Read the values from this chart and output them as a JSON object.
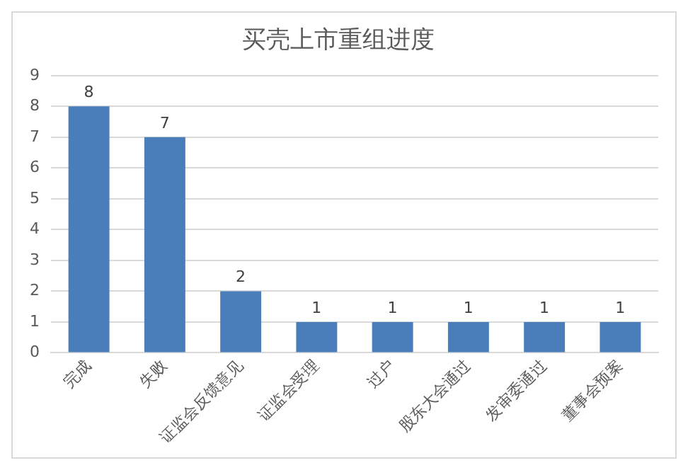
{
  "chart_data": {
    "type": "bar",
    "title": "买壳上市重组进度",
    "categories": [
      "完成",
      "失败",
      "证监会反馈意见",
      "证监会受理",
      "过户",
      "股东大会通过",
      "发审委通过",
      "董事会预案"
    ],
    "values": [
      8,
      7,
      2,
      1,
      1,
      1,
      1,
      1
    ],
    "color": "#4a7ebb",
    "ylim": [
      0,
      9
    ],
    "yticks": [
      0,
      1,
      2,
      3,
      4,
      5,
      6,
      7,
      8,
      9
    ],
    "grid": "y",
    "data_labels": true
  }
}
